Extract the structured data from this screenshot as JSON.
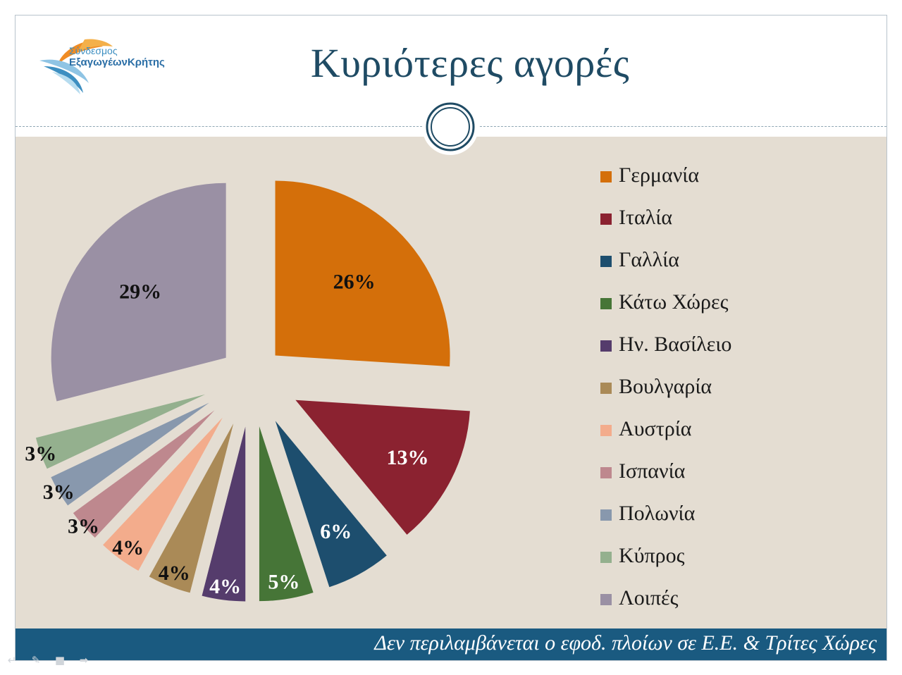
{
  "slide": {
    "title": "Κυριότερες αγορές",
    "footer_note": "Δεν περιλαμβάνεται ο εφοδ. πλοίων σε Ε.Ε. & Τρίτες Χώρες"
  },
  "logo": {
    "line1": "Σύνδεσμος",
    "line2": "ΕξαγωγέωνΚρήτης"
  },
  "chart_data": {
    "type": "pie",
    "title": "",
    "categories": [
      "Γερμανία",
      "Ιταλία",
      "Γαλλία",
      "Κάτω Χώρες",
      "Ην. Βασίλειο",
      "Βουλγαρία",
      "Αυστρία",
      "Ισπανία",
      "Πολωνία",
      "Κύπρος",
      "Λοιπές"
    ],
    "values": [
      26,
      13,
      6,
      5,
      4,
      4,
      4,
      3,
      3,
      3,
      29
    ],
    "labels": [
      "26%",
      "13%",
      "6%",
      "5%",
      "4%",
      "4%",
      "4%",
      "3%",
      "3%",
      "3%",
      "29%"
    ],
    "colors": [
      "#d46f0a",
      "#8b2230",
      "#1d4e6e",
      "#467537",
      "#553c6c",
      "#aa8a57",
      "#f3ac8c",
      "#be888e",
      "#8898ad",
      "#94b08e",
      "#9a90a4"
    ],
    "legend_position": "right"
  },
  "navigation": {
    "icons": [
      "arrow-left-icon",
      "pen-icon",
      "menu-icon",
      "arrow-right-icon"
    ]
  }
}
